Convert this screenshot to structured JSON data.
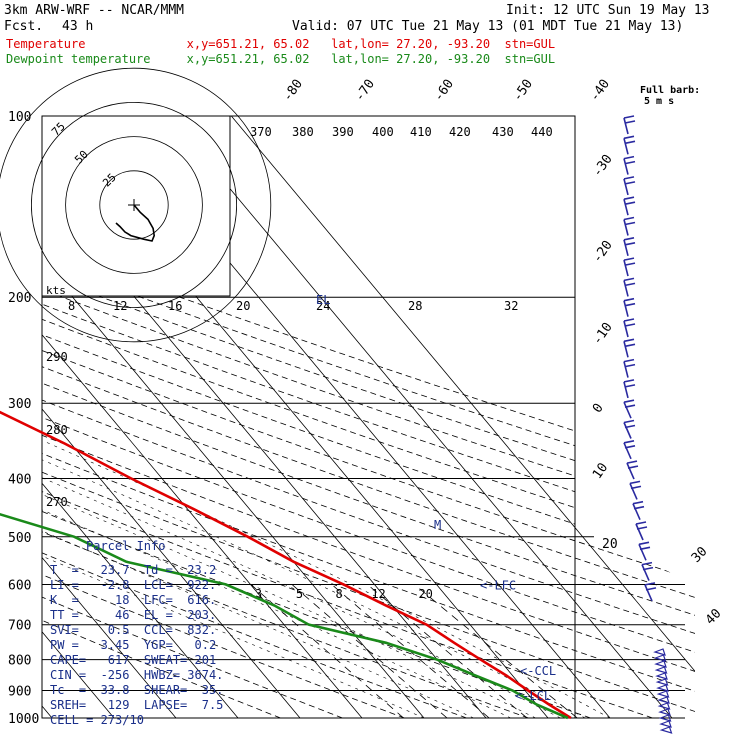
{
  "header": {
    "model": "3km ARW-WRF -- NCAR/MMM",
    "init": "Init: 12 UTC Sun 19 May 13",
    "fcst_label": "Fcst.",
    "fcst_value": "43 h",
    "valid": "Valid: 07 UTC Tue 21 May 13 (01 MDT Tue 21 May 13)",
    "temp_line": "Temperature              x,y=651.21, 65.02   lat,lon= 27.20, -93.20  stn=GUL",
    "dew_line": "Dewpoint temperature     x,y=651.21, 65.02   lat,lon= 27.20, -93.20  stn=GUL",
    "barb_title": "Full barb:",
    "barb_unit": "5 m s"
  },
  "colors": {
    "temperature": "#e00000",
    "dewpoint": "#1a8a1a",
    "hodograph_trace": "#000000",
    "wind_barbs": "#2a2aa0",
    "parcel_text": "#1a2f8a",
    "header_red": "#e00000",
    "header_green": "#1a8a1a"
  },
  "chart_data": {
    "type": "line",
    "pressure_levels": [
      100,
      200,
      300,
      400,
      500,
      600,
      700,
      800,
      900,
      1000
    ],
    "isotherm_labels": [
      "-80",
      "-70",
      "-60",
      "-50",
      "-40",
      "-30",
      "-20",
      "-10",
      "0",
      "10",
      "20",
      "30",
      "40"
    ],
    "theta_labels": [
      "370",
      "380",
      "390",
      "400",
      "410",
      "420",
      "430",
      "440",
      "290",
      "280",
      "270"
    ],
    "mixing_ratio_labels": [
      "3",
      "5",
      "8",
      "12",
      "20"
    ],
    "hodo_speed_labels": [
      "8",
      "12",
      "16",
      "20",
      "24",
      "28",
      "32"
    ],
    "hodo_ring_labels": [
      "75",
      "50",
      "25"
    ],
    "hodo_unit": "kts",
    "series": [
      {
        "name": "Temperature",
        "points": [
          [
            1000,
            23.7
          ],
          [
            950,
            22
          ],
          [
            900,
            20.5
          ],
          [
            850,
            19
          ],
          [
            800,
            17
          ],
          [
            750,
            15
          ],
          [
            700,
            13
          ],
          [
            650,
            9
          ],
          [
            600,
            5
          ],
          [
            550,
            0
          ],
          [
            500,
            -4
          ],
          [
            450,
            -9
          ],
          [
            400,
            -15
          ],
          [
            350,
            -21
          ],
          [
            300,
            -29
          ],
          [
            250,
            -39
          ],
          [
            200,
            -52
          ],
          [
            175,
            -60
          ],
          [
            150,
            -66
          ],
          [
            125,
            -71
          ],
          [
            115,
            -73
          ],
          [
            100,
            -72
          ]
        ]
      },
      {
        "name": "Dewpoint temperature",
        "points": [
          [
            1000,
            23.2
          ],
          [
            950,
            20
          ],
          [
            900,
            18
          ],
          [
            850,
            14
          ],
          [
            800,
            10
          ],
          [
            750,
            4
          ],
          [
            700,
            -6
          ],
          [
            650,
            -9
          ],
          [
            600,
            -14
          ],
          [
            550,
            -27
          ],
          [
            500,
            -32
          ],
          [
            450,
            -43
          ],
          [
            400,
            -52
          ],
          [
            350,
            -50
          ],
          [
            300,
            -40
          ],
          [
            250,
            -33
          ],
          [
            220,
            -38
          ],
          [
            200,
            -47
          ],
          [
            175,
            -62
          ],
          [
            150,
            -70
          ],
          [
            130,
            -72
          ],
          [
            115,
            -75
          ],
          [
            100,
            -78
          ]
        ]
      }
    ],
    "hodograph": [
      [
        0,
        0
      ],
      [
        0.5,
        -4
      ],
      [
        1.5,
        -8
      ],
      [
        1.4,
        -13
      ],
      [
        0.5,
        -17
      ],
      [
        -1,
        -20
      ],
      [
        -3,
        -19
      ],
      [
        -6,
        -17
      ],
      [
        -7,
        -15
      ],
      [
        -7.5,
        -12
      ],
      [
        -8,
        -10
      ]
    ],
    "markers": {
      "lfc": {
        "text": "<-LFC",
        "p": 616
      },
      "ccl": {
        "text": "<-CCL",
        "p": 832
      },
      "lcl": {
        "text": "<-LCL",
        "p": 922
      },
      "m": {
        "text": "M",
        "p": 480
      },
      "el": {
        "text": "EL",
        "p": 203
      }
    }
  },
  "parcel": {
    "title": "Parcel Info",
    "rows": [
      "T  =   23.7  Td =  23.2",
      "LI =   -2.8  LCL=  922.",
      "K  =     18  LFC=  616.",
      "TT =     46  EL =  203.",
      "SVI=    0.5  CCL=  832.",
      "PW =   3.45  YGP=   0.2",
      "CAPE=   617  SWEAT= 201",
      "CIN =  -256  HWBZ= 3674.",
      "Tc  =  33.8  SHEAR=  35.",
      "SREH=   129  LAPSE=  7.5",
      "CELL = 273/10"
    ]
  }
}
